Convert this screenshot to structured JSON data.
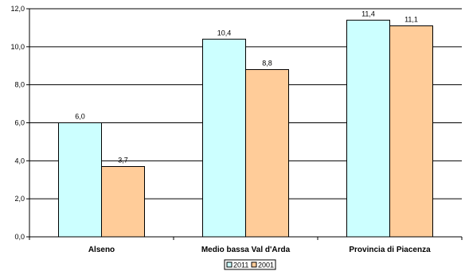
{
  "chart_data": {
    "type": "bar",
    "categories": [
      "Alseno",
      "Medio bassa Val d'Arda",
      "Provincia di Piacenza"
    ],
    "series": [
      {
        "name": "2011",
        "values": [
          6.0,
          10.4,
          11.4
        ],
        "color": "#ccffff"
      },
      {
        "name": "2001",
        "values": [
          3.7,
          8.8,
          11.1
        ],
        "color": "#ffcc99"
      }
    ],
    "value_labels": [
      [
        "6,0",
        "10,4",
        "11,4"
      ],
      [
        "3,7",
        "8,8",
        "11,1"
      ]
    ],
    "yticks": [
      0,
      2,
      4,
      6,
      8,
      10,
      12
    ],
    "ytick_labels": [
      "0,0",
      "2,0",
      "4,0",
      "6,0",
      "8,0",
      "10,0",
      "12,0"
    ],
    "ylim": [
      0,
      12
    ],
    "grid": true,
    "legend_position": "bottom-center",
    "title": "",
    "xlabel": "",
    "ylabel": ""
  }
}
